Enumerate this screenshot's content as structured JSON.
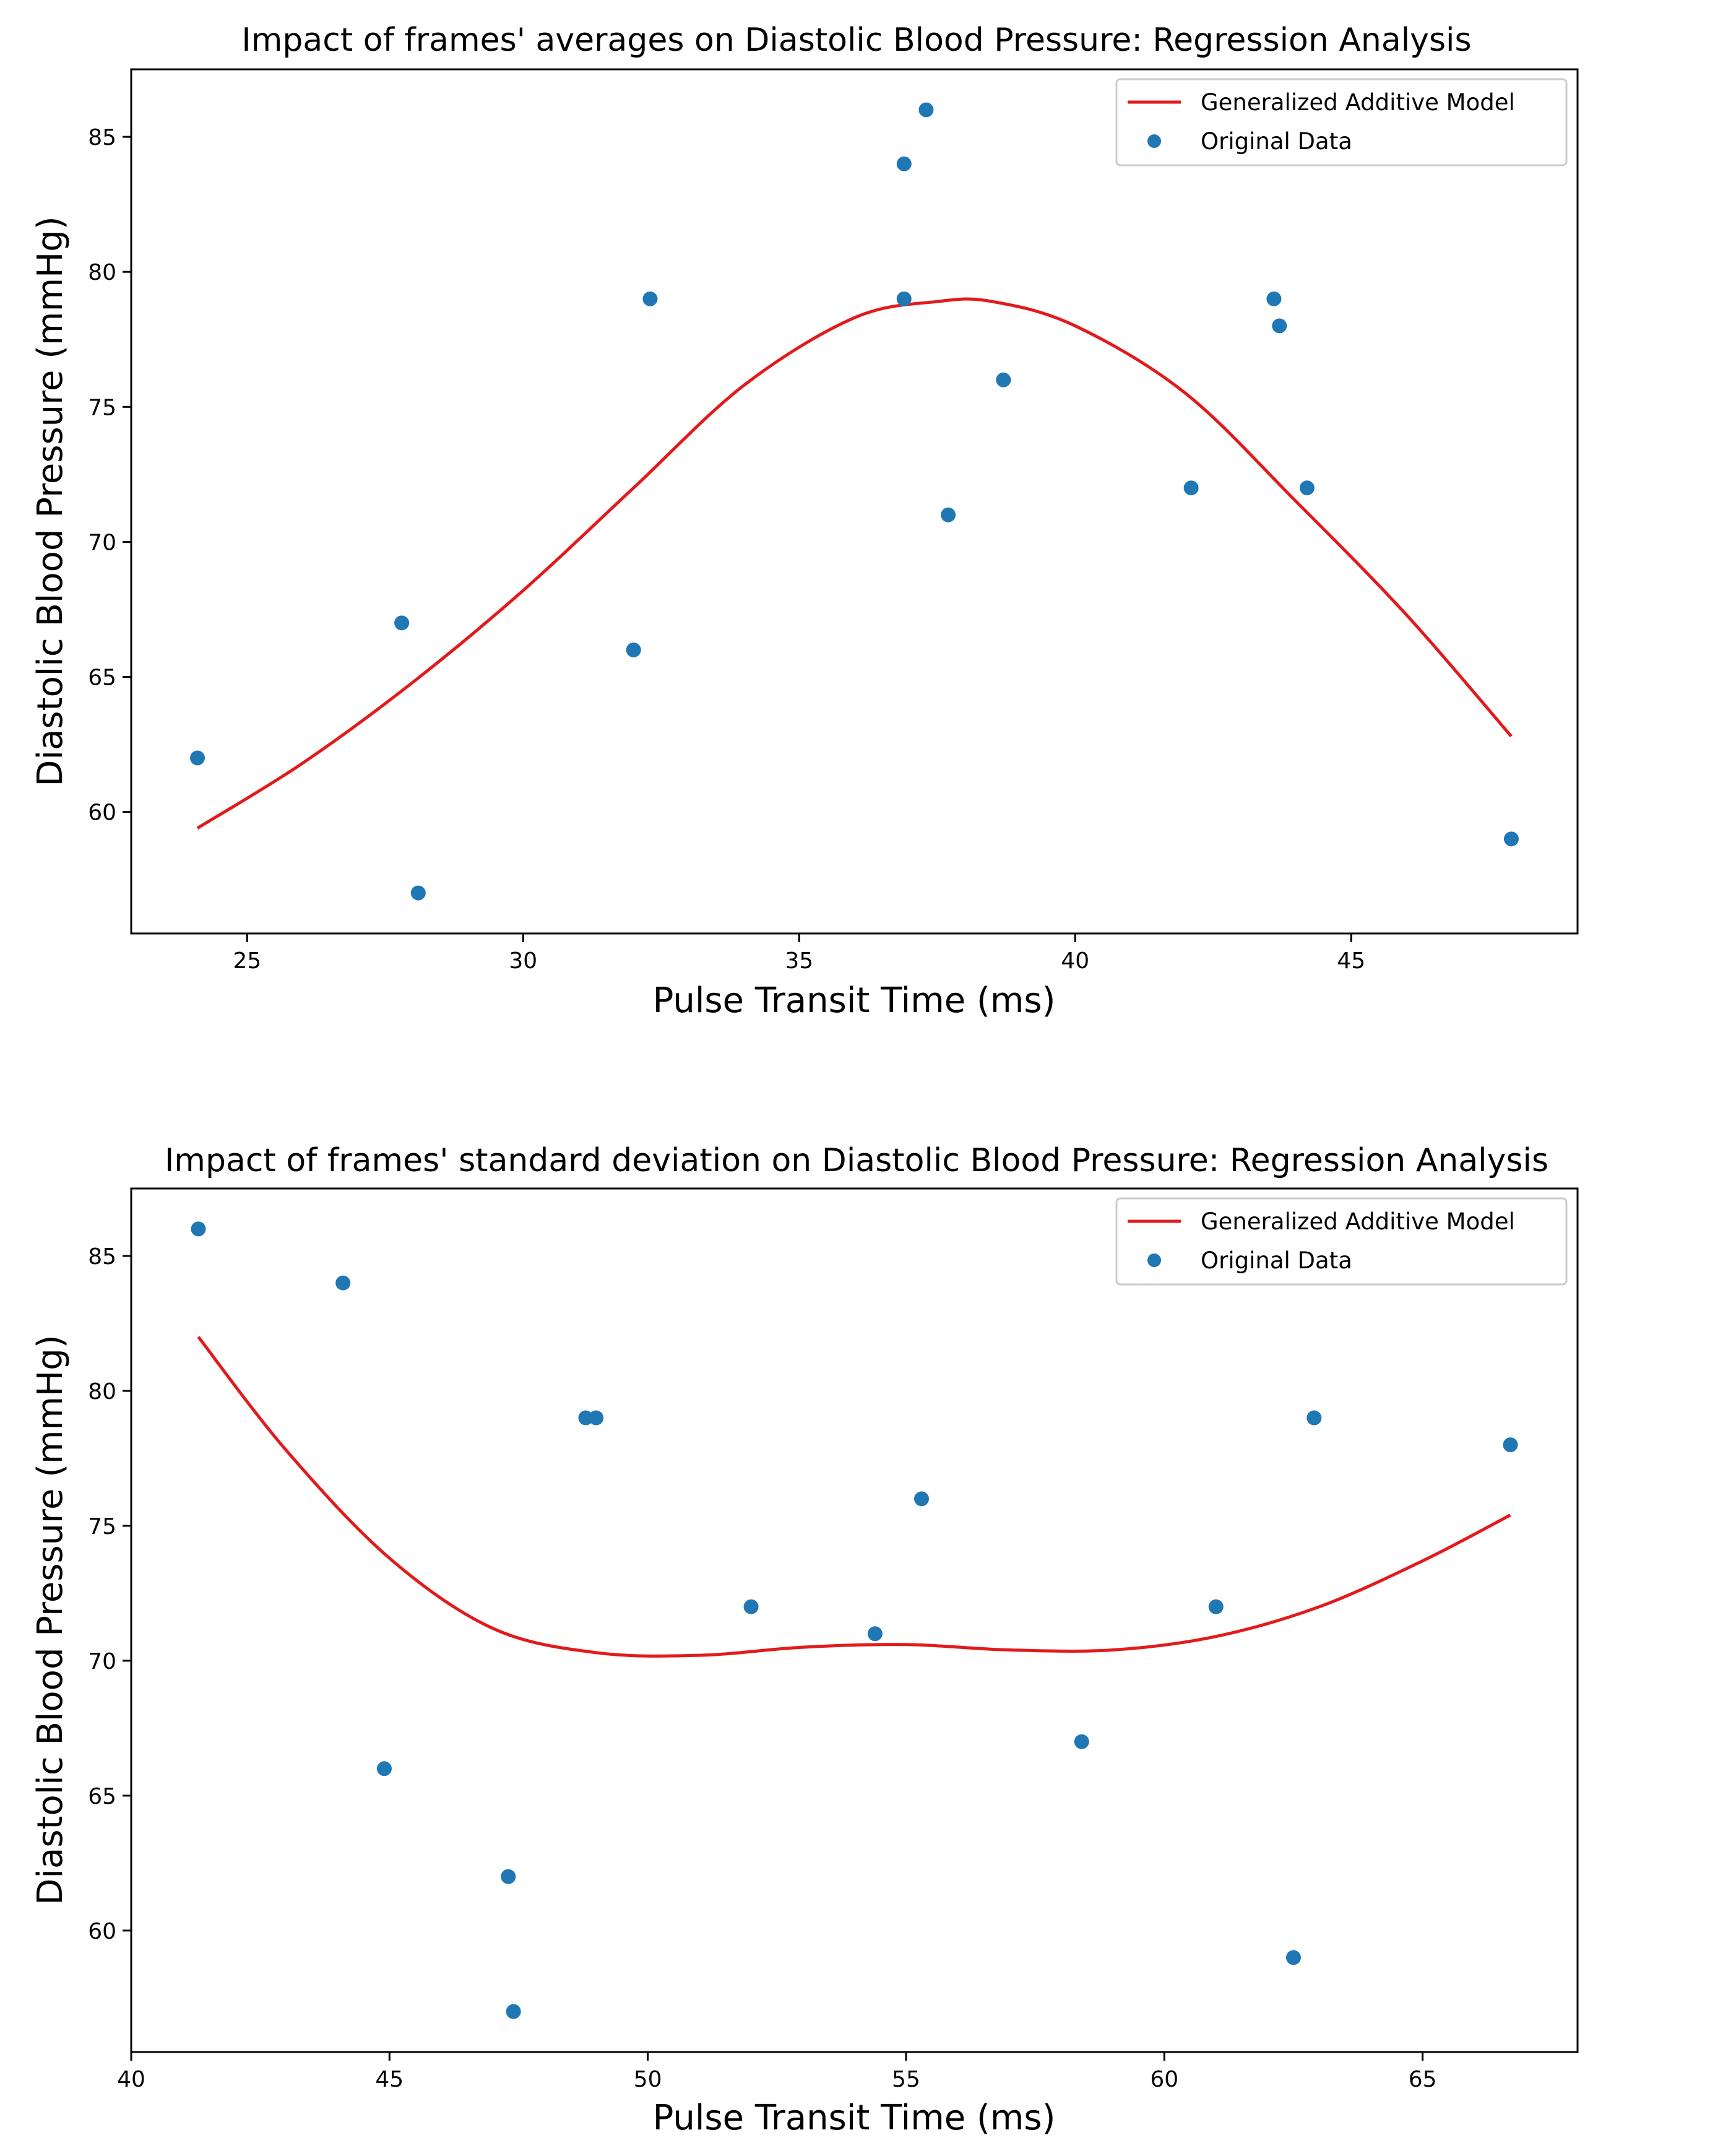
{
  "chart_data": [
    {
      "type": "scatter",
      "title": "Impact of frames' averages on Diastolic Blood Pressure: Regression Analysis",
      "xlabel": "Pulse Transit Time (ms)",
      "ylabel": "Diastolic Blood Pressure (mmHg)",
      "xlim": [
        22.9,
        49.1
      ],
      "ylim": [
        55.5,
        87.5
      ],
      "xticks": [
        25,
        30,
        35,
        40,
        45
      ],
      "yticks": [
        60,
        65,
        70,
        75,
        80,
        85
      ],
      "legend_position": "upper right",
      "series": [
        {
          "name": "Generalized Additive Model",
          "kind": "line",
          "color": "#e31a1c",
          "x": [
            24.1,
            26,
            28,
            30,
            32,
            34,
            36,
            37.5,
            38.5,
            40,
            42,
            44,
            46,
            47.9
          ],
          "y": [
            59.4,
            61.8,
            64.8,
            68.2,
            72.0,
            75.8,
            78.3,
            78.9,
            78.9,
            78.0,
            75.5,
            71.5,
            67.3,
            62.8
          ]
        },
        {
          "name": "Original Data",
          "kind": "scatter",
          "color": "#1f77b4",
          "x": [
            24.1,
            27.8,
            28.1,
            32.0,
            32.3,
            36.9,
            36.9,
            37.3,
            37.7,
            38.7,
            42.1,
            43.6,
            43.7,
            44.2,
            47.9
          ],
          "y": [
            62,
            67,
            57,
            66,
            79,
            84,
            79,
            86,
            71,
            76,
            72,
            79,
            78,
            72,
            59
          ]
        }
      ]
    },
    {
      "type": "scatter",
      "title": "Impact of frames' standard deviation on Diastolic Blood Pressure: Regression Analysis",
      "xlabel": "Pulse Transit Time (ms)",
      "ylabel": "Diastolic Blood Pressure (mmHg)",
      "xlim": [
        40.0,
        68.0
      ],
      "ylim": [
        55.5,
        87.5
      ],
      "xticks": [
        40,
        45,
        50,
        55,
        60,
        65
      ],
      "yticks": [
        60,
        65,
        70,
        75,
        80,
        85
      ],
      "legend_position": "upper right",
      "series": [
        {
          "name": "Generalized Additive Model",
          "kind": "line",
          "color": "#e31a1c",
          "x": [
            41.3,
            43,
            45,
            47,
            49,
            51,
            53,
            55,
            57,
            59,
            61,
            63,
            65,
            66.7
          ],
          "y": [
            82.0,
            77.8,
            73.8,
            71.2,
            70.3,
            70.2,
            70.5,
            70.6,
            70.4,
            70.4,
            70.9,
            72.0,
            73.7,
            75.4
          ]
        },
        {
          "name": "Original Data",
          "kind": "scatter",
          "color": "#1f77b4",
          "x": [
            41.3,
            44.1,
            44.9,
            47.3,
            47.4,
            48.8,
            49.0,
            52.0,
            54.4,
            55.3,
            58.4,
            61.0,
            62.5,
            62.9,
            66.7
          ],
          "y": [
            86,
            84,
            66,
            62,
            57,
            79,
            79,
            72,
            71,
            76,
            67,
            72,
            59,
            79,
            78
          ]
        }
      ]
    }
  ]
}
